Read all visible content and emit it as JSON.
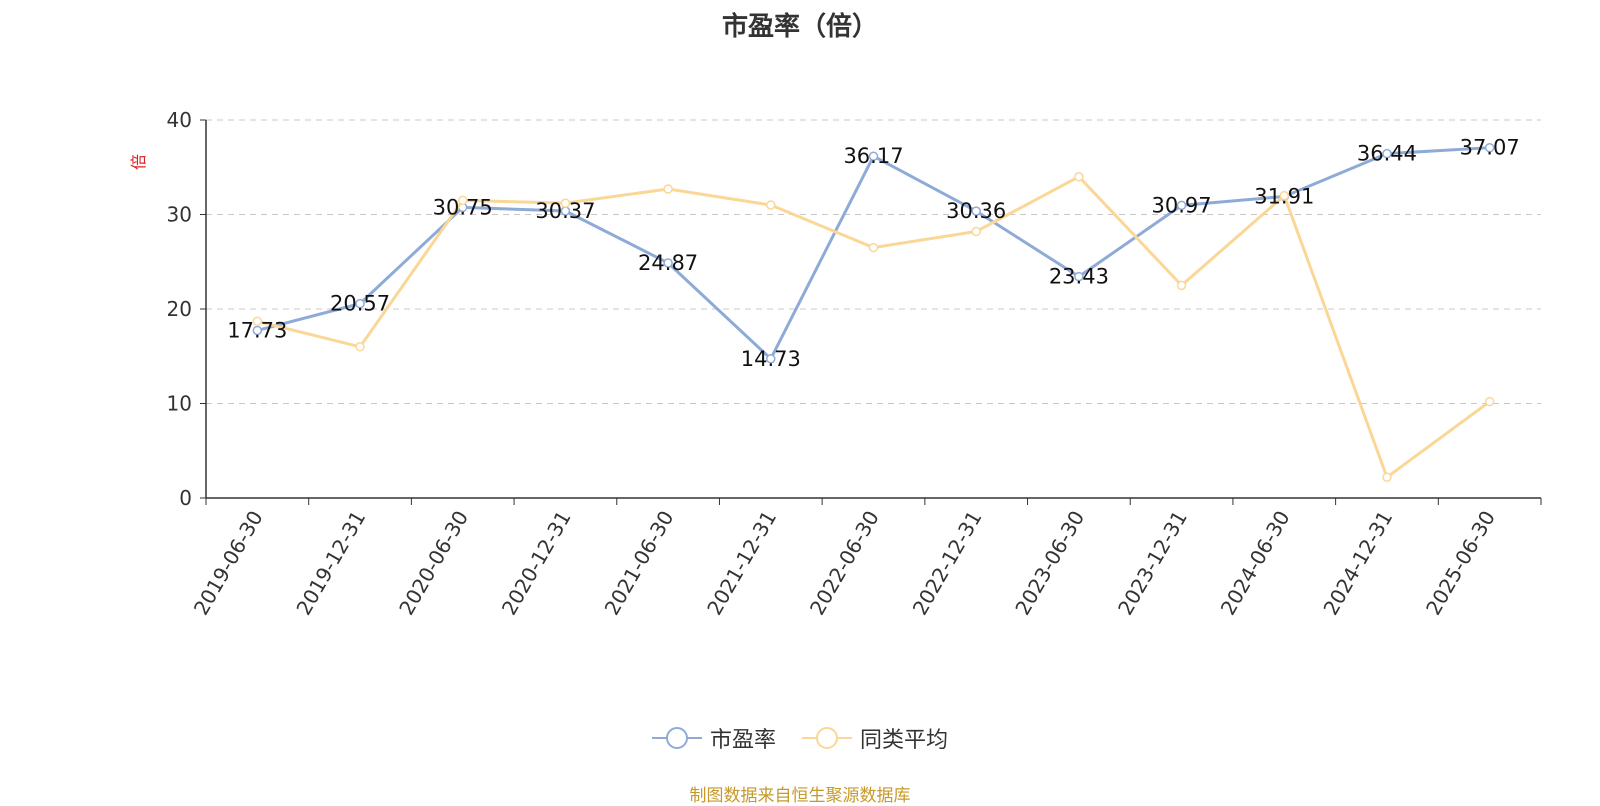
{
  "chart_data": {
    "type": "line",
    "title": "市盈率（倍）",
    "ylabel": "倍",
    "ylim": [
      0,
      40
    ],
    "yticks": [
      0,
      10,
      20,
      30,
      40
    ],
    "grid": true,
    "legend_position": "bottom",
    "categories": [
      "2019-06-30",
      "2019-12-31",
      "2020-06-30",
      "2020-12-31",
      "2021-06-30",
      "2021-12-31",
      "2022-06-30",
      "2022-12-31",
      "2023-06-30",
      "2023-12-31",
      "2024-06-30",
      "2024-12-31",
      "2025-06-30"
    ],
    "series": [
      {
        "name": "市盈率",
        "color": "#8eabd8",
        "values": [
          17.73,
          20.57,
          30.75,
          30.37,
          24.87,
          14.73,
          36.17,
          30.36,
          23.43,
          30.97,
          31.91,
          36.44,
          37.07
        ],
        "labels": [
          "17.73",
          "20.57",
          "30.75",
          "30.37",
          "24.87",
          "14.73",
          "36.17",
          "30.36",
          "23.43",
          "30.97",
          "31.91",
          "36.44",
          "37.07"
        ]
      },
      {
        "name": "同类平均",
        "color": "#fbd797",
        "values": [
          18.7,
          16.0,
          31.5,
          31.2,
          32.7,
          31.0,
          26.5,
          28.2,
          34.0,
          22.5,
          32.0,
          2.2,
          10.2
        ]
      }
    ]
  },
  "source_text": "制图数据来自恒生聚源数据库"
}
